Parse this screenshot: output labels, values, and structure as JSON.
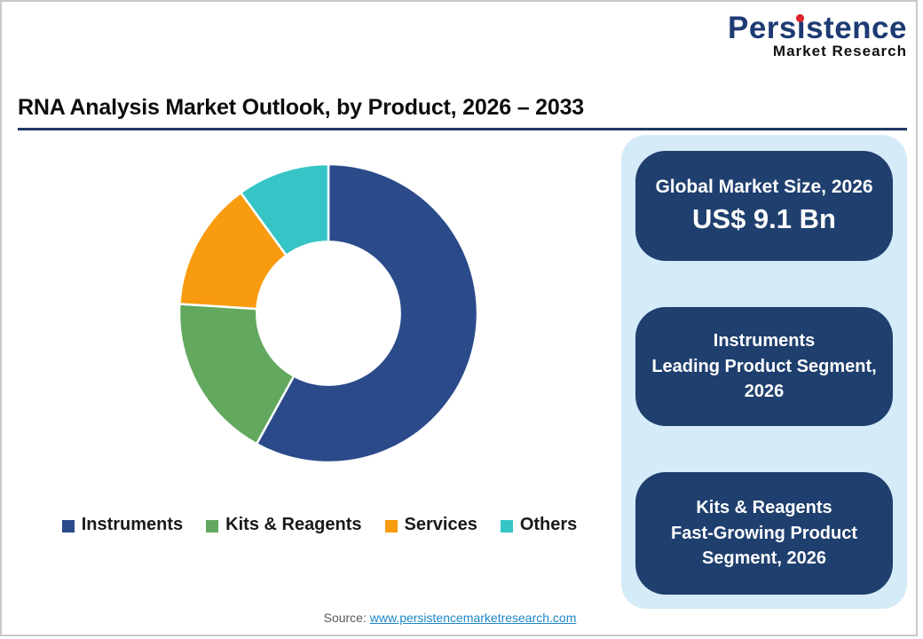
{
  "header": {
    "logo": {
      "brand": "Persistence",
      "tagline": "Market Research"
    },
    "title": "RNA Analysis Market Outlook, by Product, 2026 – 2033"
  },
  "chart_data": {
    "type": "pie",
    "subtype": "donut",
    "title": "RNA Analysis Market Outlook, by Product, 2026 – 2033",
    "categories": [
      "Instruments",
      "Kits & Reagents",
      "Services",
      "Others"
    ],
    "values": [
      58,
      18,
      14,
      10
    ],
    "values_unit": "% share (estimated from arc angles)",
    "colors": [
      "#2b4a8a",
      "#62a85e",
      "#f89b0e",
      "#36c5c6"
    ],
    "start_angle_deg": 0,
    "direction": "clockwise",
    "donut_hole_ratio": 0.48,
    "legend_position": "bottom",
    "data_labels": false
  },
  "info_panel": {
    "cards": [
      {
        "label": "Global Market Size, 2026",
        "value": "US$ 9.1 Bn"
      },
      {
        "title": "Instruments",
        "subtitle": "Leading Product Segment, 2026"
      },
      {
        "title": "Kits & Reagents",
        "subtitle": "Fast-Growing Product Segment, 2026"
      }
    ]
  },
  "footer": {
    "source_label": "Source:",
    "source_link": "www.persistencemarketresearch.com"
  },
  "theme": {
    "card_bg": "#1f3f6e",
    "panel_bg": "#d6ebf8",
    "title_underline": "#1f3864",
    "brand_navy": "#1d3a73",
    "brand_dot_red": "#d9272e",
    "link_blue": "#1e87c8",
    "frame_border": "#c9c9c9"
  }
}
